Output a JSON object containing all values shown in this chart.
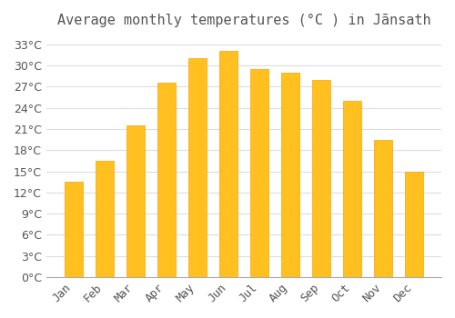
{
  "title": "Average monthly temperatures (°C ) in Jānsath",
  "months": [
    "Jan",
    "Feb",
    "Mar",
    "Apr",
    "May",
    "Jun",
    "Jul",
    "Aug",
    "Sep",
    "Oct",
    "Nov",
    "Dec"
  ],
  "values": [
    13.5,
    16.5,
    21.5,
    27.5,
    31.0,
    32.0,
    29.5,
    29.0,
    28.0,
    25.0,
    19.5,
    15.0
  ],
  "bar_color": "#FFC020",
  "bar_edge_color": "#FFA000",
  "background_color": "#FFFFFF",
  "grid_color": "#DDDDDD",
  "text_color": "#555555",
  "ylim": [
    0,
    34
  ],
  "yticks": [
    0,
    3,
    6,
    9,
    12,
    15,
    18,
    21,
    24,
    27,
    30,
    33
  ],
  "title_fontsize": 11,
  "tick_fontsize": 9
}
